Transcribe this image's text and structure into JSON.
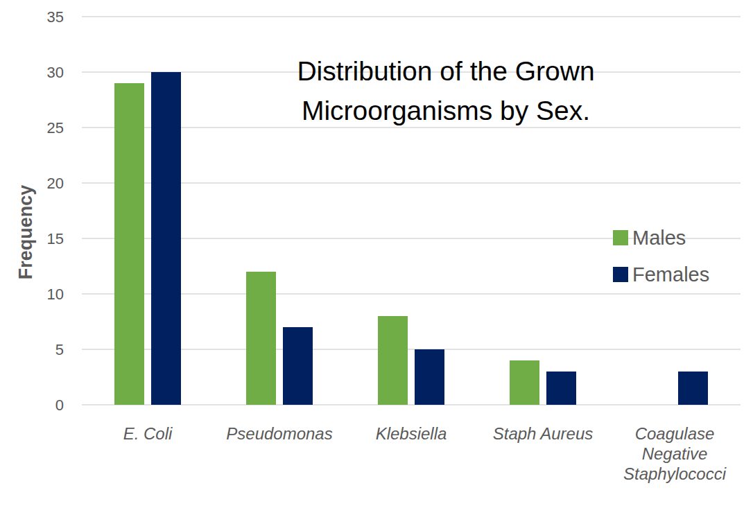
{
  "chart_data": {
    "type": "bar",
    "title": "Distribution of the Grown Microorganisms by Sex.",
    "y_label": "Frequency",
    "categories": [
      "E. Coli",
      "Pseudomonas",
      "Klebsiella",
      "Staph Aureus",
      "Coagulase Negative Staphylococci"
    ],
    "series": [
      {
        "name": "Males",
        "color": "#70ad47",
        "values": [
          29,
          12,
          8,
          4,
          0
        ]
      },
      {
        "name": "Females",
        "color": "#002060",
        "values": [
          30,
          7,
          5,
          3,
          3
        ]
      }
    ],
    "ylim": [
      0,
      35
    ],
    "yticks": [
      0,
      5,
      10,
      15,
      20,
      25,
      30,
      35
    ],
    "grid": true,
    "legend": "right"
  }
}
